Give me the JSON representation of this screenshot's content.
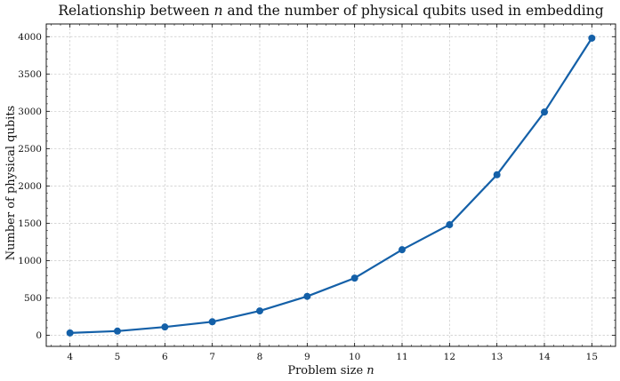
{
  "chart_data": {
    "type": "line",
    "title_prefix": "Relationship between ",
    "title_var": "n",
    "title_suffix": " and the number of physical qubits used in embedding",
    "xlabel_prefix": "Problem size ",
    "xlabel_var": "n",
    "ylabel": "Number of physical qubits",
    "x": [
      4,
      5,
      6,
      7,
      8,
      9,
      10,
      11,
      12,
      13,
      14,
      15
    ],
    "series": [
      {
        "values": [
          30,
          55,
          110,
          180,
          325,
          520,
          765,
          1145,
          1480,
          2150,
          2990,
          3980
        ],
        "color": "#1460a8"
      }
    ],
    "xlim": [
      3.5,
      15.5
    ],
    "ylim": [
      -150,
      4170
    ],
    "xticks": [
      4,
      5,
      6,
      7,
      8,
      9,
      10,
      11,
      12,
      13,
      14,
      15
    ],
    "yticks": [
      0,
      500,
      1000,
      1500,
      2000,
      2500,
      3000,
      3500,
      4000
    ],
    "grid": true,
    "marker": "circle"
  }
}
